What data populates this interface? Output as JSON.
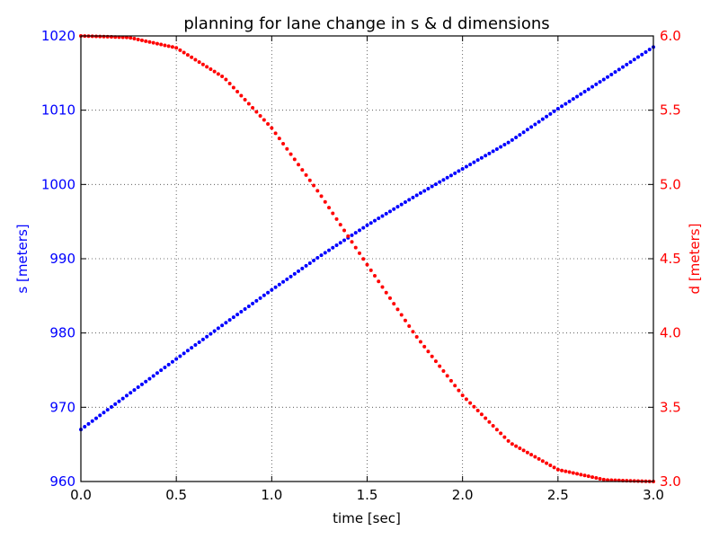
{
  "chart_data": {
    "type": "scatter",
    "title": "planning for lane change in s & d dimensions",
    "xlabel": "time [sec]",
    "ylabel_left": "s [meters]",
    "ylabel_right": "d [meters]",
    "xlim": [
      0.0,
      3.0
    ],
    "ylim_left": [
      960,
      1020
    ],
    "ylim_right": [
      3.0,
      6.0
    ],
    "xticks": [
      "0.0",
      "0.5",
      "1.0",
      "1.5",
      "2.0",
      "2.5",
      "3.0"
    ],
    "yticks_left": [
      "960",
      "970",
      "980",
      "990",
      "1000",
      "1010",
      "1020"
    ],
    "yticks_right": [
      "3.0",
      "3.5",
      "4.0",
      "4.5",
      "5.0",
      "5.5",
      "6.0"
    ],
    "grid": true,
    "colors": {
      "s": "#0000ff",
      "d": "#ff0000"
    },
    "series": [
      {
        "axis": "left",
        "color": "#0000ff",
        "x": [
          0.0,
          0.25,
          0.5,
          0.75,
          1.0,
          1.25,
          1.5,
          1.75,
          2.0,
          2.25,
          2.5,
          2.75,
          3.0
        ],
        "values": [
          967.0,
          971.75,
          976.5,
          981.2,
          985.8,
          990.3,
          994.5,
          998.4,
          1002.1,
          1005.8,
          1010.2,
          1014.3,
          1018.5
        ]
      },
      {
        "axis": "right",
        "color": "#ff0000",
        "x": [
          0.0,
          0.25,
          0.5,
          0.75,
          1.0,
          1.25,
          1.5,
          1.75,
          2.0,
          2.25,
          2.5,
          2.75,
          3.0
        ],
        "values": [
          6.0,
          5.99,
          5.92,
          5.72,
          5.38,
          4.94,
          4.46,
          3.99,
          3.58,
          3.26,
          3.08,
          3.01,
          3.0
        ]
      }
    ]
  }
}
